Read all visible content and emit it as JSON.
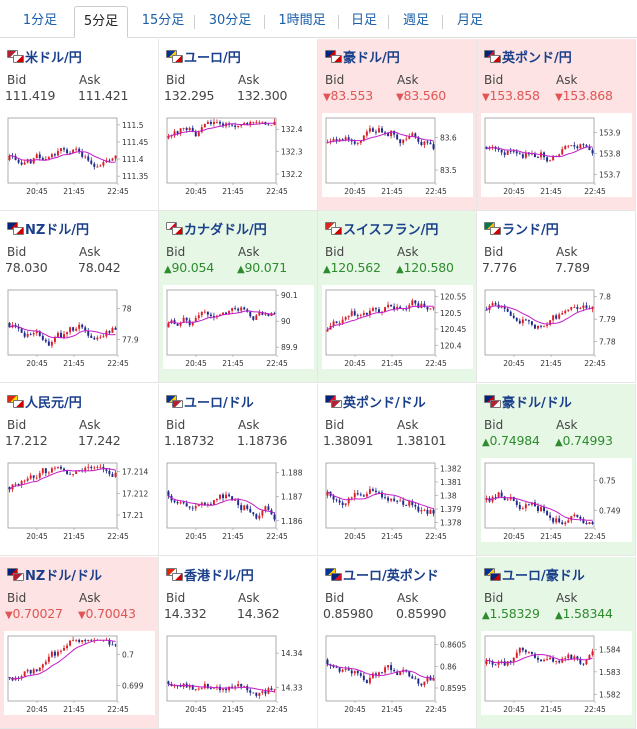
{
  "tabs": [
    "1分足",
    "5分足",
    "15分足",
    "30分足",
    "1時間足",
    "日足",
    "週足",
    "月足"
  ],
  "active_tab": "5分足",
  "colors": {
    "up_bg": "#e6f7e6",
    "down_bg": "#fde3e3",
    "candle_up": "#d91f2a",
    "candle_down": "#1f2a8c",
    "ma_line": "#c41cc9"
  },
  "labels": {
    "bid": "Bid",
    "ask": "Ask"
  },
  "x_ticks": [
    "20:45",
    "21:45",
    "22:45"
  ],
  "pairs": [
    {
      "name": "米ドル/円",
      "bid": "111.419",
      "ask": "111.421",
      "trend": "none",
      "flags": [
        "US",
        "JP"
      ],
      "y_ticks": [
        "111.5",
        "111.45",
        "111.4",
        "111.35"
      ],
      "ylim": [
        111.33,
        111.52
      ],
      "seed": 101
    },
    {
      "name": "ユーロ/円",
      "bid": "132.295",
      "ask": "132.300",
      "trend": "none",
      "flags": [
        "EU",
        "JP"
      ],
      "y_ticks": [
        "132.4",
        "132.3",
        "132.2"
      ],
      "ylim": [
        132.16,
        132.45
      ],
      "seed": 102
    },
    {
      "name": "豪ドル/円",
      "bid": "83.553",
      "ask": "83.560",
      "trend": "down",
      "flags": [
        "AU",
        "JP"
      ],
      "y_ticks": [
        "83.6",
        "83.5"
      ],
      "ylim": [
        83.46,
        83.66
      ],
      "seed": 103
    },
    {
      "name": "英ポンド/円",
      "bid": "153.858",
      "ask": "153.868",
      "trend": "down",
      "flags": [
        "GB",
        "JP"
      ],
      "y_ticks": [
        "153.9",
        "153.8",
        "153.7"
      ],
      "ylim": [
        153.66,
        153.97
      ],
      "seed": 104
    },
    {
      "name": "NZドル/円",
      "bid": "78.030",
      "ask": "78.042",
      "trend": "none",
      "flags": [
        "NZ",
        "JP"
      ],
      "y_ticks": [
        "78",
        "77.9"
      ],
      "ylim": [
        77.85,
        78.06
      ],
      "seed": 105
    },
    {
      "name": "カナダドル/円",
      "bid": "90.054",
      "ask": "90.071",
      "trend": "up",
      "flags": [
        "CA",
        "JP"
      ],
      "y_ticks": [
        "90.1",
        "90",
        "89.9"
      ],
      "ylim": [
        89.87,
        90.12
      ],
      "seed": 106
    },
    {
      "name": "スイスフラン/円",
      "bid": "120.562",
      "ask": "120.580",
      "trend": "up",
      "flags": [
        "CH",
        "JP"
      ],
      "y_ticks": [
        "120.55",
        "120.5",
        "120.45",
        "120.4"
      ],
      "ylim": [
        120.37,
        120.57
      ],
      "seed": 107
    },
    {
      "name": "ランド/円",
      "bid": "7.776",
      "ask": "7.789",
      "trend": "none",
      "flags": [
        "ZA",
        "JP"
      ],
      "y_ticks": [
        "7.8",
        "7.79",
        "7.78"
      ],
      "ylim": [
        7.774,
        7.803
      ],
      "seed": 108
    },
    {
      "name": "人民元/円",
      "bid": "17.212",
      "ask": "17.242",
      "trend": "none",
      "flags": [
        "CN",
        "JP"
      ],
      "y_ticks": [
        "17.214",
        "17.212",
        "17.21"
      ],
      "ylim": [
        17.2088,
        17.2148
      ],
      "seed": 109
    },
    {
      "name": "ユーロ/ドル",
      "bid": "1.18732",
      "ask": "1.18736",
      "trend": "none",
      "flags": [
        "EU",
        "US"
      ],
      "y_ticks": [
        "1.188",
        "1.187",
        "1.186"
      ],
      "ylim": [
        1.1857,
        1.1884
      ],
      "seed": 110
    },
    {
      "name": "英ポンド/ドル",
      "bid": "1.38091",
      "ask": "1.38101",
      "trend": "none",
      "flags": [
        "GB",
        "US"
      ],
      "y_ticks": [
        "1.382",
        "1.381",
        "1.38",
        "1.379",
        "1.378"
      ],
      "ylim": [
        1.3776,
        1.3824
      ],
      "seed": 111
    },
    {
      "name": "豪ドル/ドル",
      "bid": "0.74984",
      "ask": "0.74993",
      "trend": "up",
      "flags": [
        "AU",
        "US"
      ],
      "y_ticks": [
        "0.75",
        "0.749"
      ],
      "ylim": [
        0.7484,
        0.7506
      ],
      "seed": 112
    },
    {
      "name": "NZドル/ドル",
      "bid": "0.70027",
      "ask": "0.70043",
      "trend": "down",
      "flags": [
        "NZ",
        "US"
      ],
      "y_ticks": [
        "0.7",
        "0.699"
      ],
      "ylim": [
        0.6985,
        0.7006
      ],
      "seed": 113
    },
    {
      "name": "香港ドル/円",
      "bid": "14.332",
      "ask": "14.362",
      "trend": "none",
      "flags": [
        "HK",
        "JP"
      ],
      "y_ticks": [
        "14.34",
        "14.33"
      ],
      "ylim": [
        14.326,
        14.345
      ],
      "seed": 114
    },
    {
      "name": "ユーロ/英ポンド",
      "bid": "0.85980",
      "ask": "0.85990",
      "trend": "none",
      "flags": [
        "EU",
        "GB"
      ],
      "y_ticks": [
        "0.8605",
        "0.86",
        "0.8595"
      ],
      "ylim": [
        0.8592,
        0.8607
      ],
      "seed": 115
    },
    {
      "name": "ユーロ/豪ドル",
      "bid": "1.58329",
      "ask": "1.58344",
      "trend": "up",
      "flags": [
        "EU",
        "AU"
      ],
      "y_ticks": [
        "1.584",
        "1.583",
        "1.582"
      ],
      "ylim": [
        1.5817,
        1.5846
      ],
      "seed": 116
    }
  ],
  "chart_data": {
    "type": "candlestick",
    "note_axes": "x ticks 20:45, 21:45, 22:45; each card shows 5-minute candles with a moving-average line"
  }
}
